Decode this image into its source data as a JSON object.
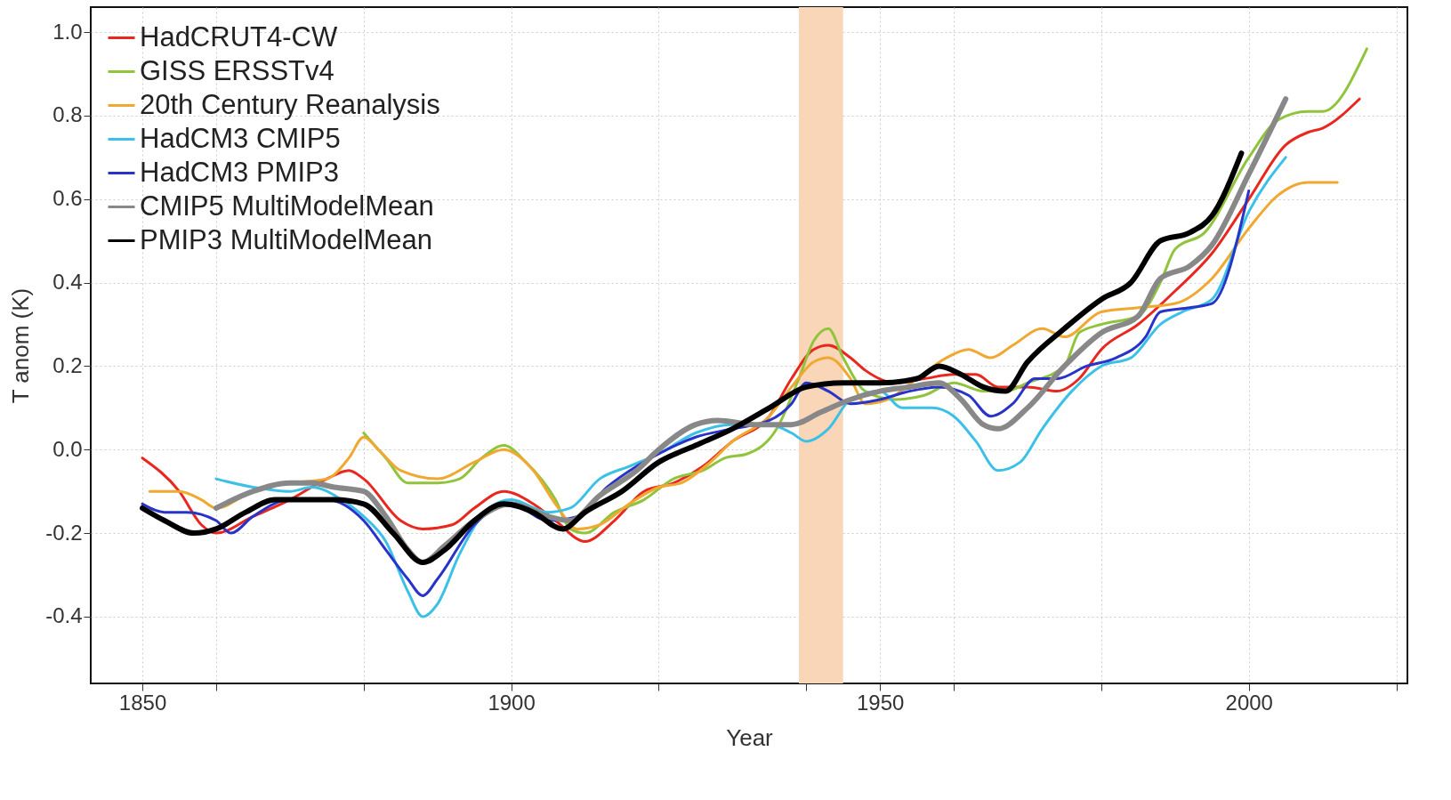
{
  "chart_data": {
    "type": "line",
    "xlabel": "Year",
    "ylabel": "T anom (K)",
    "xlim": [
      1843,
      2021.5
    ],
    "ylim": [
      -0.56,
      1.06
    ],
    "xticks": [
      1850,
      {
        "value": 1860,
        "label": null
      },
      {
        "value": 1880,
        "label": null
      },
      1900,
      {
        "value": 1920,
        "label": null
      },
      {
        "value": 1940,
        "label": null
      },
      1950,
      {
        "value": 1960,
        "label": null
      },
      {
        "value": 1980,
        "label": null
      },
      2000,
      {
        "value": 2020,
        "label": null
      }
    ],
    "yticks": [
      -0.4,
      -0.2,
      {
        "value": 0,
        "label": "0.0"
      },
      0.2,
      0.4,
      0.6,
      0.8,
      {
        "value": 1,
        "label": "1.0"
      }
    ],
    "grid": true,
    "legend": "top left",
    "line_style": "solid",
    "marker": "none",
    "bands": [
      {
        "axis": "x",
        "from": 1939,
        "to": 1945,
        "color": "#fad6b8"
      }
    ],
    "series": [
      {
        "name": "HadCRUT4-CW",
        "color": "#e8281e",
        "x": [
          1850,
          1855,
          1858,
          1860,
          1865,
          1870,
          1875,
          1878,
          1880,
          1885,
          1888,
          1892,
          1895,
          1899,
          1903,
          1906,
          1910,
          1914,
          1918,
          1922,
          1926,
          1930,
          1935,
          1938,
          1941,
          1943,
          1946,
          1948,
          1952,
          1956,
          1960,
          1963,
          1966,
          1970,
          1974,
          1977,
          1980,
          1985,
          1990,
          1995,
          2000,
          2005,
          2008,
          2010,
          2015
        ],
        "values": [
          -0.02,
          -0.1,
          -0.18,
          -0.2,
          -0.16,
          -0.12,
          -0.07,
          -0.05,
          -0.07,
          -0.17,
          -0.19,
          -0.18,
          -0.14,
          -0.1,
          -0.13,
          -0.17,
          -0.22,
          -0.17,
          -0.1,
          -0.08,
          -0.04,
          0.02,
          0.08,
          0.17,
          0.24,
          0.25,
          0.22,
          0.19,
          0.16,
          0.17,
          0.18,
          0.18,
          0.15,
          0.15,
          0.14,
          0.17,
          0.24,
          0.3,
          0.38,
          0.47,
          0.6,
          0.73,
          0.76,
          0.77,
          0.84
        ]
      },
      {
        "name": "GISS ERSSTv4",
        "color": "#8fc43c",
        "x": [
          1880,
          1883,
          1886,
          1890,
          1893,
          1896,
          1899,
          1902,
          1906,
          1908,
          1910,
          1914,
          1918,
          1922,
          1926,
          1929,
          1932,
          1936,
          1939,
          1941,
          1943,
          1945,
          1948,
          1952,
          1956,
          1960,
          1964,
          1967,
          1970,
          1975,
          1977,
          1980,
          1985,
          1988,
          1990,
          1994,
          2000,
          2004,
          2008,
          2010,
          2016
        ],
        "values": [
          0.04,
          -0.02,
          -0.08,
          -0.08,
          -0.07,
          -0.02,
          0.01,
          -0.03,
          -0.12,
          -0.19,
          -0.2,
          -0.15,
          -0.12,
          -0.07,
          -0.05,
          -0.02,
          -0.01,
          0.05,
          0.17,
          0.26,
          0.29,
          0.22,
          0.14,
          0.12,
          0.13,
          0.16,
          0.14,
          0.14,
          0.16,
          0.2,
          0.28,
          0.3,
          0.32,
          0.4,
          0.48,
          0.52,
          0.7,
          0.79,
          0.81,
          0.81,
          0.96
        ]
      },
      {
        "name": "20th Century Reanalysis",
        "color": "#f0a830",
        "x": [
          1851,
          1855,
          1858,
          1860,
          1865,
          1870,
          1875,
          1878,
          1880,
          1882,
          1885,
          1890,
          1895,
          1899,
          1903,
          1906,
          1909,
          1912,
          1916,
          1920,
          1923,
          1927,
          1930,
          1935,
          1938,
          1941,
          1943,
          1946,
          1948,
          1951,
          1955,
          1959,
          1962,
          1965,
          1968,
          1972,
          1975,
          1980,
          1985,
          1990,
          1995,
          2000,
          2004,
          2008,
          2012
        ],
        "values": [
          -0.1,
          -0.1,
          -0.12,
          -0.14,
          -0.1,
          -0.08,
          -0.07,
          -0.02,
          0.03,
          0.0,
          -0.05,
          -0.07,
          -0.03,
          0.0,
          -0.05,
          -0.13,
          -0.19,
          -0.18,
          -0.13,
          -0.09,
          -0.08,
          -0.03,
          0.02,
          0.08,
          0.15,
          0.21,
          0.22,
          0.17,
          0.11,
          0.12,
          0.17,
          0.22,
          0.24,
          0.22,
          0.25,
          0.29,
          0.27,
          0.33,
          0.34,
          0.35,
          0.41,
          0.53,
          0.61,
          0.64,
          0.64
        ]
      },
      {
        "name": "HadCM3 CMIP5",
        "color": "#3cc0e8",
        "x": [
          1860,
          1865,
          1870,
          1873,
          1877,
          1880,
          1883,
          1886,
          1888,
          1890,
          1893,
          1897,
          1900,
          1905,
          1908,
          1912,
          1916,
          1920,
          1925,
          1930,
          1935,
          1938,
          1940,
          1943,
          1946,
          1950,
          1953,
          1957,
          1960,
          1963,
          1966,
          1969,
          1972,
          1976,
          1980,
          1984,
          1988,
          1991,
          1995,
          2000,
          2005
        ],
        "values": [
          -0.07,
          -0.09,
          -0.1,
          -0.09,
          -0.12,
          -0.16,
          -0.22,
          -0.34,
          -0.4,
          -0.37,
          -0.25,
          -0.14,
          -0.12,
          -0.15,
          -0.14,
          -0.07,
          -0.04,
          -0.01,
          0.04,
          0.06,
          0.06,
          0.04,
          0.02,
          0.05,
          0.12,
          0.14,
          0.1,
          0.1,
          0.08,
          0.02,
          -0.05,
          -0.03,
          0.05,
          0.14,
          0.2,
          0.22,
          0.3,
          0.33,
          0.36,
          0.57,
          0.7
        ]
      },
      {
        "name": "HadCM3 PMIP3",
        "color": "#2833c8",
        "x": [
          1850,
          1853,
          1856,
          1860,
          1862,
          1865,
          1870,
          1875,
          1880,
          1883,
          1886,
          1888,
          1890,
          1895,
          1900,
          1905,
          1909,
          1913,
          1917,
          1920,
          1925,
          1930,
          1935,
          1938,
          1940,
          1943,
          1946,
          1950,
          1954,
          1958,
          1962,
          1965,
          1968,
          1971,
          1974,
          1978,
          1982,
          1986,
          1988,
          1992,
          1995,
          2000
        ],
        "values": [
          -0.13,
          -0.15,
          -0.15,
          -0.17,
          -0.2,
          -0.16,
          -0.12,
          -0.12,
          -0.17,
          -0.24,
          -0.31,
          -0.35,
          -0.31,
          -0.18,
          -0.13,
          -0.17,
          -0.16,
          -0.09,
          -0.04,
          -0.01,
          0.03,
          0.05,
          0.07,
          0.11,
          0.16,
          0.14,
          0.11,
          0.12,
          0.14,
          0.15,
          0.13,
          0.08,
          0.11,
          0.17,
          0.17,
          0.2,
          0.22,
          0.27,
          0.33,
          0.34,
          0.35,
          0.62
        ]
      },
      {
        "name": "CMIP5 MultiModelMean",
        "color": "#888888",
        "x": [
          1860,
          1865,
          1870,
          1873,
          1876,
          1880,
          1883,
          1886,
          1888,
          1891,
          1895,
          1900,
          1905,
          1908,
          1912,
          1917,
          1920,
          1925,
          1928,
          1933,
          1938,
          1942,
          1946,
          1950,
          1954,
          1958,
          1961,
          1964,
          1966,
          1970,
          1975,
          1980,
          1985,
          1988,
          1992,
          1995,
          2000,
          2005
        ],
        "values": [
          -0.14,
          -0.1,
          -0.08,
          -0.08,
          -0.09,
          -0.1,
          -0.16,
          -0.24,
          -0.27,
          -0.23,
          -0.17,
          -0.13,
          -0.16,
          -0.17,
          -0.11,
          -0.05,
          0.0,
          0.06,
          0.07,
          0.06,
          0.06,
          0.09,
          0.12,
          0.14,
          0.15,
          0.16,
          0.12,
          0.06,
          0.05,
          0.1,
          0.2,
          0.28,
          0.32,
          0.41,
          0.44,
          0.49,
          0.66,
          0.84
        ]
      },
      {
        "name": "PMIP3 MultiModelMean",
        "color": "#000000",
        "x": [
          1850,
          1853,
          1857,
          1860,
          1864,
          1868,
          1872,
          1876,
          1880,
          1884,
          1888,
          1891,
          1895,
          1899,
          1903,
          1907,
          1910,
          1915,
          1920,
          1925,
          1930,
          1935,
          1940,
          1945,
          1950,
          1955,
          1958,
          1961,
          1964,
          1967,
          1970,
          1975,
          1980,
          1984,
          1988,
          1992,
          1995,
          1999
        ],
        "values": [
          -0.14,
          -0.17,
          -0.2,
          -0.19,
          -0.15,
          -0.12,
          -0.12,
          -0.12,
          -0.13,
          -0.2,
          -0.27,
          -0.24,
          -0.17,
          -0.13,
          -0.15,
          -0.19,
          -0.15,
          -0.1,
          -0.03,
          0.01,
          0.05,
          0.1,
          0.15,
          0.16,
          0.16,
          0.17,
          0.2,
          0.18,
          0.15,
          0.14,
          0.21,
          0.29,
          0.36,
          0.4,
          0.5,
          0.52,
          0.56,
          0.71
        ]
      }
    ]
  }
}
